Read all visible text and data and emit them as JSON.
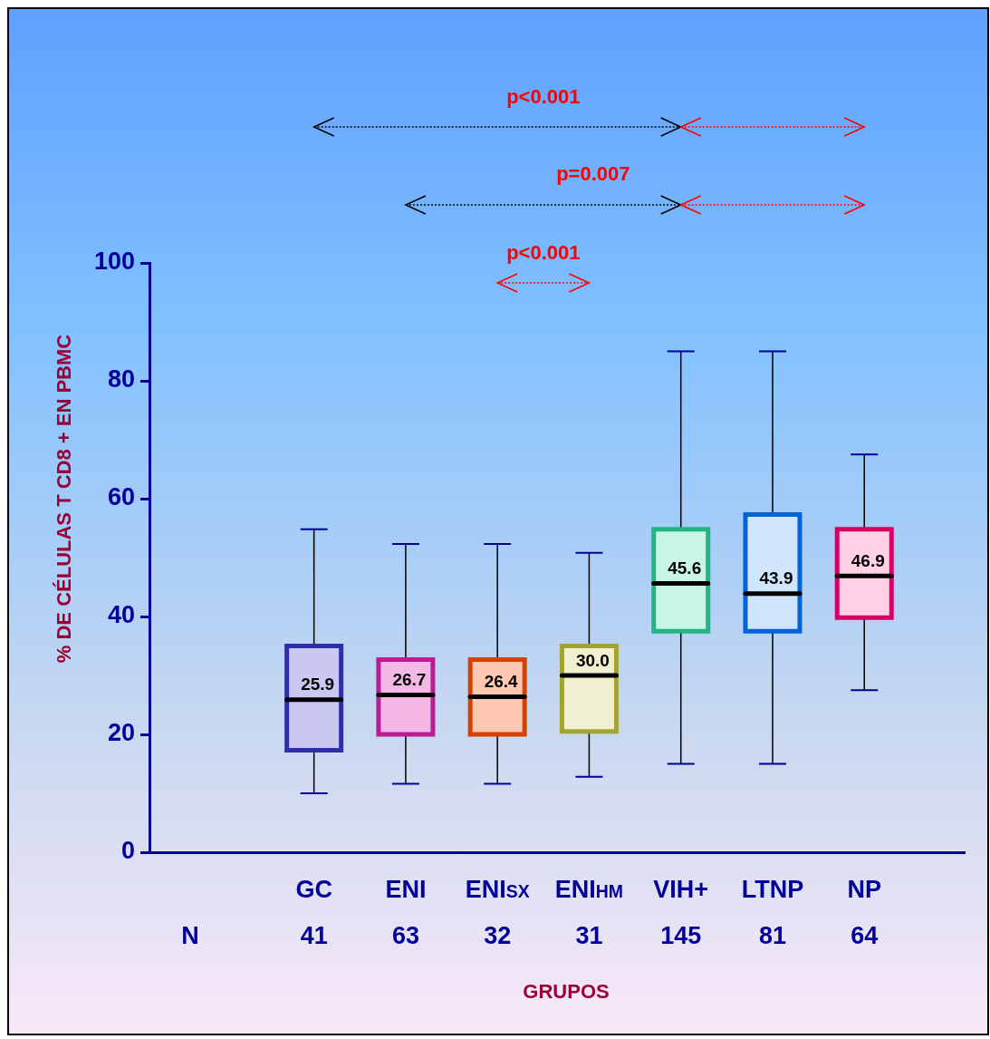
{
  "chart_data": {
    "type": "box",
    "ylabel": "% DE CÉLULAS T CD8 + EN PBMC",
    "xlabel": "GRUPOS",
    "categories": [
      "GC",
      "ENI",
      "ENI$_{SX}$",
      "ENI$_{HM}$",
      "VIH+",
      "LTNP",
      "NP"
    ],
    "colors": [
      "#c8c8f0",
      "#f5b8e6",
      "#ffc8b0",
      "#f0f0d0",
      "#c8f5e6",
      "#d0e6ff",
      "#ffd0e6"
    ],
    "boxes": [
      {
        "low": 10,
        "q1": 17.3,
        "median": 25.9,
        "q3": 35,
        "high": 54.8
      },
      {
        "low": 11.6,
        "q1": 20,
        "median": 26.7,
        "q3": 32.7,
        "high": 52.3
      },
      {
        "low": 11.6,
        "q1": 20,
        "median": 26.4,
        "q3": 32.7,
        "high": 52.3
      },
      {
        "low": 12.8,
        "q1": 20.5,
        "median": 30.0,
        "q3": 35,
        "high": 50.8
      },
      {
        "low": 15,
        "q1": 37.5,
        "median": 45.6,
        "q3": 54.8,
        "high": 85
      },
      {
        "low": 15,
        "q1": 37.5,
        "median": 43.9,
        "q3": 57.3,
        "high": 85
      },
      {
        "low": 27.5,
        "q1": 39.8,
        "median": 46.9,
        "q3": 54.8,
        "high": 67.5
      }
    ],
    "value_labels": [
      "25.9",
      "26.7",
      "26.4",
      "30.0",
      "45.6",
      "43.9",
      "46.9"
    ],
    "ylim": [
      0,
      100
    ],
    "yticks": [
      0,
      20,
      40,
      60,
      80,
      100
    ],
    "annotations": [
      "p<0.001",
      "p=0.007",
      "p<0.001",
      "N",
      "41",
      "63",
      "32",
      "31",
      "145",
      "81",
      "64"
    ],
    "grid": false,
    "legend": false
  }
}
